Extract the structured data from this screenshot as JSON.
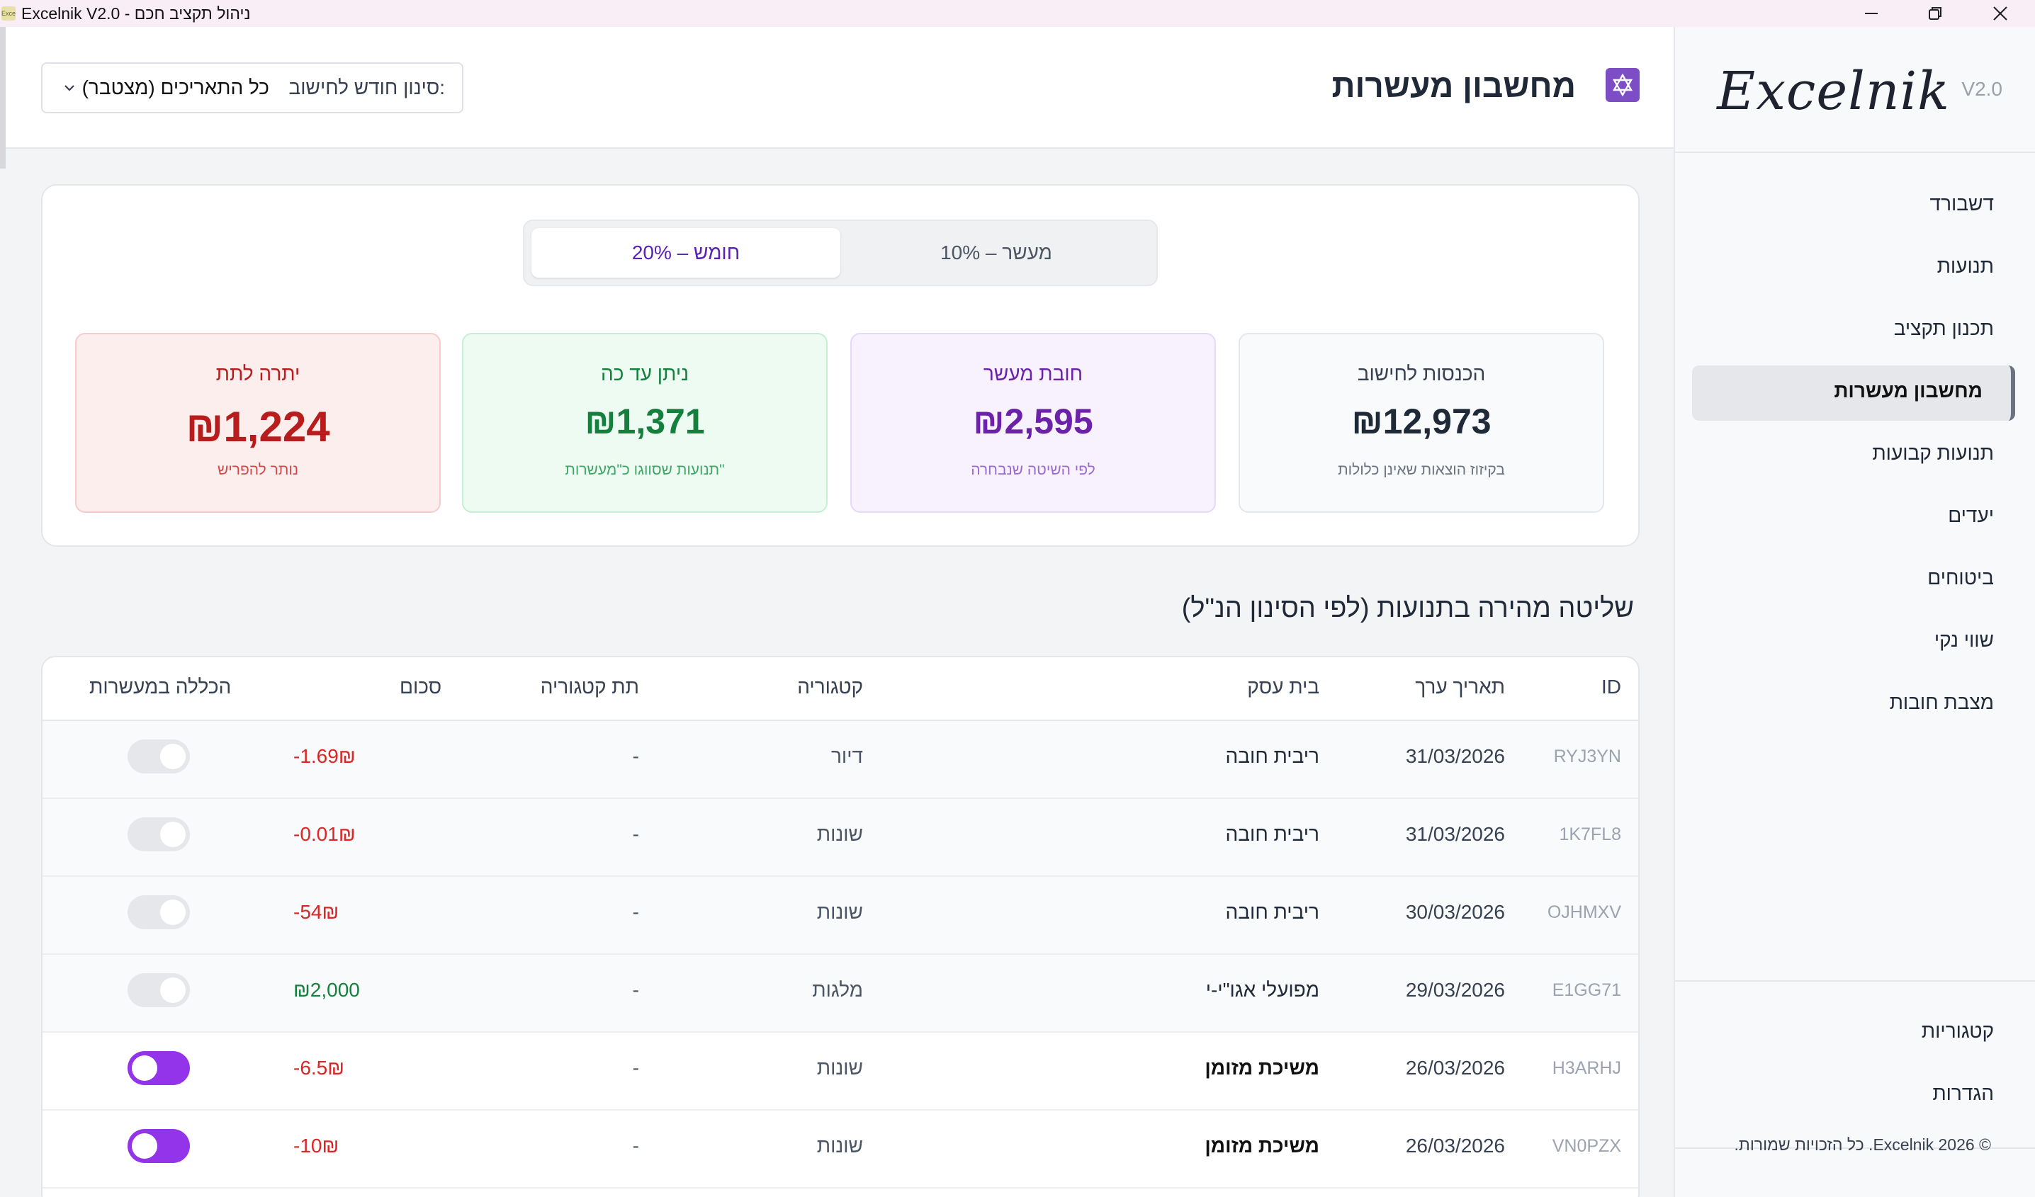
{
  "window": {
    "title": "Excelnik V2.0 - ניהול תקציב חכם",
    "app_icon_text": "Excelnik"
  },
  "sidebar": {
    "logo": "Excelnik",
    "version": "V2.0",
    "items": [
      {
        "label": "דשבורד"
      },
      {
        "label": "תנועות"
      },
      {
        "label": "תכנון תקציב"
      },
      {
        "label": "מחשבון מעשרות",
        "active": true
      },
      {
        "label": "תנועות קבועות"
      },
      {
        "label": "יעדים"
      },
      {
        "label": "ביטוחים"
      },
      {
        "label": "שווי נקי"
      },
      {
        "label": "מצבת חובות"
      }
    ],
    "bottom_items": [
      {
        "label": "קטגוריות"
      },
      {
        "label": "הגדרות"
      }
    ],
    "footer": "© 2026 Excelnik. כל הזכויות שמורות."
  },
  "header": {
    "title": "מחשבון מעשרות",
    "icon": "star-of-david-icon",
    "filter_label": "סינון חודש לחישוב:",
    "filter_value": "כל התאריכים (מצטבר)"
  },
  "method_toggle": {
    "options": [
      "חומש – 20%",
      "מעשר – 10%"
    ],
    "selected": "חומש – 20%"
  },
  "stats": {
    "income": {
      "label": "הכנסות לחישוב",
      "value": "₪12,973",
      "sub": "בקיזוז הוצאות שאינן כלולות"
    },
    "owed": {
      "label": "חובת מעשר",
      "value": "₪2,595",
      "sub": "לפי השיטה שנבחרה"
    },
    "given": {
      "label": "ניתן עד כה",
      "value": "₪1,371",
      "sub": "תנועות שסווגו כ\"מעשרות\""
    },
    "remaining": {
      "label": "יתרה לתת",
      "value": "₪1,224",
      "sub": "נותר להפריש"
    }
  },
  "section_title": "שליטה מהירה בתנועות (לפי הסינון הנ\"ל)",
  "table": {
    "columns": {
      "id": "ID",
      "date": "תאריך ערך",
      "business": "בית עסק",
      "category": "קטגוריה",
      "subcategory": "תת קטגוריה",
      "amount": "סכום",
      "include": "הכללה במעשרות"
    },
    "rows": [
      {
        "id": "RYJ3YN",
        "date": "31/03/2026",
        "business": "ריבית חובה",
        "category": "דיור",
        "subcategory": "-",
        "amount": "-1.69₪",
        "included": false
      },
      {
        "id": "1K7FL8",
        "date": "31/03/2026",
        "business": "ריבית חובה",
        "category": "שונות",
        "subcategory": "-",
        "amount": "-0.01₪",
        "included": false
      },
      {
        "id": "OJHMXV",
        "date": "30/03/2026",
        "business": "ריבית חובה",
        "category": "שונות",
        "subcategory": "-",
        "amount": "-54₪",
        "included": false
      },
      {
        "id": "E1GG71",
        "date": "29/03/2026",
        "business": "מפועלי אגו\"י-י",
        "category": "מלגות",
        "subcategory": "-",
        "amount": "₪2,000",
        "included": false
      },
      {
        "id": "H3ARHJ",
        "date": "26/03/2026",
        "business": "משיכת מזומן",
        "category": "שונות",
        "subcategory": "-",
        "amount": "-6.5₪",
        "included": true
      },
      {
        "id": "VN0PZX",
        "date": "26/03/2026",
        "business": "משיכת מזומן",
        "category": "שונות",
        "subcategory": "-",
        "amount": "-10₪",
        "included": true
      }
    ]
  },
  "colors": {
    "accent": "#9333ea",
    "income_positive": "#15803d",
    "expense_negative": "#dc2626"
  }
}
